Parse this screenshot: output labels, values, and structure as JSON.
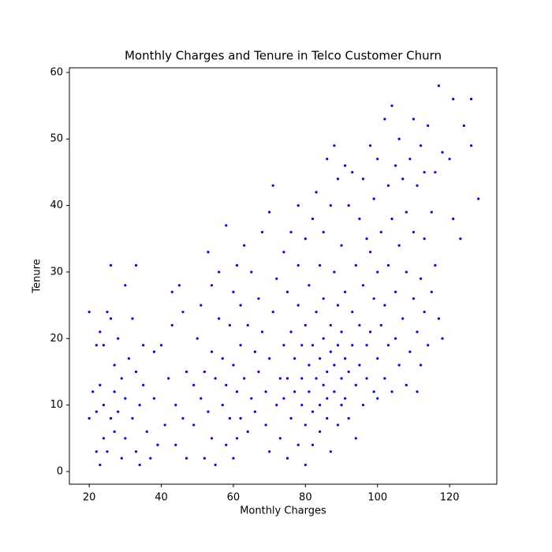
{
  "chart_data": {
    "type": "scatter",
    "title": "Monthly Charges and Tenure in Telco Customer Churn",
    "x_label": "Monthly Charges",
    "y_label": "Tenure",
    "xlim": [
      14.5,
      133.1
    ],
    "ylim": [
      -1.9,
      60.7
    ],
    "xticks": [
      20,
      40,
      60,
      80,
      100,
      120
    ],
    "yticks": [
      0,
      10,
      20,
      30,
      40,
      50,
      60
    ],
    "grid": false,
    "color": "blue",
    "x": [
      20,
      20,
      21,
      22,
      22,
      22,
      23,
      23,
      23,
      24,
      24,
      24,
      25,
      25,
      26,
      26,
      26,
      27,
      27,
      27,
      28,
      28,
      29,
      29,
      30,
      30,
      30,
      31,
      32,
      32,
      33,
      33,
      33,
      34,
      34,
      35,
      35,
      36,
      37,
      38,
      38,
      39,
      40,
      41,
      42,
      43,
      43,
      44,
      44,
      45,
      46,
      47,
      47,
      46,
      49,
      49,
      50,
      51,
      51,
      52,
      52,
      53,
      53,
      54,
      54,
      54,
      55,
      55,
      56,
      56,
      57,
      57,
      58,
      58,
      58,
      59,
      59,
      60,
      60,
      60,
      61,
      61,
      61,
      62,
      62,
      62,
      63,
      63,
      64,
      64,
      65,
      65,
      66,
      66,
      67,
      67,
      68,
      68,
      69,
      69,
      70,
      70,
      70,
      71,
      71,
      72,
      72,
      73,
      73,
      74,
      74,
      74,
      75,
      75,
      75,
      76,
      76,
      76,
      77,
      77,
      78,
      78,
      78,
      78,
      79,
      79,
      79,
      80,
      80,
      80,
      80,
      81,
      81,
      81,
      82,
      82,
      82,
      82,
      83,
      83,
      83,
      84,
      84,
      84,
      84,
      85,
      85,
      85,
      85,
      86,
      86,
      86,
      86,
      87,
      87,
      87,
      87,
      88,
      88,
      88,
      88,
      89,
      89,
      89,
      89,
      90,
      90,
      90,
      90,
      91,
      91,
      91,
      91,
      92,
      92,
      92,
      93,
      93,
      93,
      94,
      94,
      94,
      95,
      95,
      95,
      96,
      96,
      96,
      97,
      97,
      97,
      98,
      98,
      98,
      99,
      99,
      99,
      100,
      100,
      100,
      100,
      101,
      101,
      102,
      102,
      102,
      103,
      103,
      103,
      104,
      104,
      104,
      105,
      105,
      105,
      106,
      106,
      106,
      107,
      107,
      108,
      108,
      108,
      109,
      109,
      110,
      110,
      110,
      111,
      111,
      111,
      112,
      112,
      112,
      113,
      113,
      113,
      114,
      114,
      115,
      115,
      116,
      116,
      117,
      117,
      118,
      118,
      120,
      121,
      121,
      123,
      124,
      126,
      126,
      128
    ],
    "values": [
      8,
      24,
      12,
      3,
      9,
      19,
      1,
      13,
      21,
      5,
      10,
      19,
      24,
      3,
      31,
      8,
      23,
      6,
      16,
      12,
      20,
      9,
      2,
      14,
      28,
      11,
      5,
      17,
      8,
      23,
      15,
      31,
      3,
      10,
      1,
      13,
      19,
      6,
      2,
      18,
      11,
      4,
      19,
      7,
      14,
      22,
      27,
      4,
      10,
      28,
      24,
      2,
      15,
      8,
      7,
      13,
      20,
      11,
      25,
      2,
      15,
      33,
      9,
      28,
      18,
      5,
      14,
      1,
      23,
      30,
      10,
      17,
      4,
      37,
      13,
      22,
      8,
      27,
      16,
      2,
      31,
      12,
      5,
      25,
      19,
      8,
      34,
      14,
      6,
      22,
      30,
      11,
      18,
      9,
      26,
      15,
      21,
      36,
      7,
      12,
      3,
      17,
      39,
      43,
      24,
      10,
      29,
      14,
      5,
      19,
      33,
      11,
      2,
      27,
      14,
      8,
      21,
      36,
      12,
      17,
      4,
      25,
      31,
      40,
      10,
      14,
      19,
      7,
      22,
      35,
      1,
      12,
      16,
      28,
      9,
      38,
      19,
      4,
      14,
      24,
      42,
      10,
      17,
      31,
      6,
      13,
      20,
      26,
      36,
      8,
      15,
      47,
      11,
      18,
      22,
      3,
      40,
      12,
      16,
      30,
      49,
      7,
      19,
      25,
      44,
      10,
      14,
      21,
      34,
      17,
      27,
      46,
      11,
      8,
      15,
      40,
      19,
      24,
      45,
      13,
      31,
      5,
      16,
      22,
      38,
      10,
      28,
      44,
      14,
      19,
      35,
      21,
      33,
      49,
      12,
      26,
      41,
      11,
      17,
      30,
      47,
      22,
      36,
      25,
      53,
      14,
      19,
      43,
      31,
      12,
      38,
      55,
      27,
      46,
      20,
      16,
      34,
      50,
      23,
      44,
      13,
      30,
      39,
      18,
      47,
      26,
      36,
      53,
      12,
      21,
      43,
      29,
      49,
      16,
      24,
      35,
      45,
      19,
      52,
      27,
      39,
      31,
      45,
      58,
      23,
      20,
      48,
      47,
      38,
      56,
      35,
      52,
      49,
      56,
      41
    ]
  }
}
